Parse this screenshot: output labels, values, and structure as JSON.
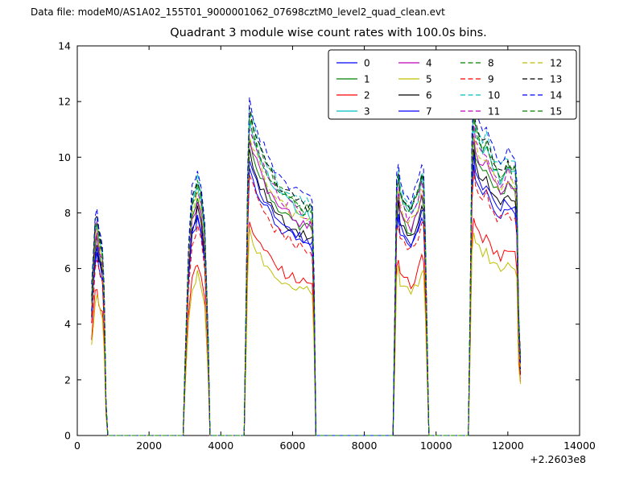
{
  "header": {
    "datafile": "Data file: modeM0/AS1A02_155T01_9000001062_07698cztM0_level2_quad_clean.evt"
  },
  "chart_data": {
    "type": "line",
    "title": "Quadrant 3 module wise count rates with 100.0s bins.",
    "xlabel": "",
    "ylabel": "",
    "xlim": [
      0,
      14000
    ],
    "ylim": [
      0,
      14
    ],
    "x_offset_label": "+2.2603e8",
    "xticks": [
      0,
      2000,
      4000,
      6000,
      8000,
      10000,
      12000,
      14000
    ],
    "yticks": [
      0,
      2,
      4,
      6,
      8,
      10,
      12,
      14
    ],
    "grid": false,
    "legend_position": "upper center-right, 4 columns",
    "series_rule": "y values of each series = scale * base_envelope at each x",
    "x": [
      400,
      450,
      500,
      550,
      600,
      650,
      700,
      750,
      800,
      850,
      2900,
      2950,
      3000,
      3100,
      3200,
      3300,
      3350,
      3450,
      3550,
      3650,
      3700,
      4600,
      4650,
      4700,
      4750,
      4800,
      4900,
      5000,
      5100,
      5200,
      5300,
      5400,
      5500,
      5600,
      5700,
      5800,
      5900,
      6000,
      6100,
      6200,
      6300,
      6400,
      6500,
      6550,
      6600,
      6650,
      8750,
      8800,
      8850,
      8900,
      8950,
      9000,
      9100,
      9200,
      9300,
      9400,
      9500,
      9600,
      9650,
      9700,
      9750,
      9800,
      10850,
      10900,
      10950,
      11000,
      11050,
      11100,
      11200,
      11300,
      11400,
      11500,
      11600,
      11700,
      11800,
      11900,
      12000,
      12100,
      12200,
      12250,
      12300,
      12350
    ],
    "base_envelope": [
      5.3,
      6.6,
      7.9,
      8.2,
      7.6,
      7.2,
      6.9,
      5.2,
      1.2,
      0,
      0,
      0,
      2.5,
      6.8,
      8.9,
      9.3,
      9.6,
      9.1,
      7.8,
      3.5,
      0,
      0,
      0,
      4.5,
      9.5,
      12.1,
      11.5,
      11.1,
      10.7,
      10.4,
      10.1,
      9.9,
      9.6,
      9.4,
      9.2,
      9.1,
      9.0,
      8.9,
      8.8,
      8.7,
      8.6,
      8.6,
      8.5,
      8.4,
      5.5,
      0,
      0,
      0,
      4.5,
      9.4,
      9.9,
      9.2,
      8.8,
      8.6,
      8.5,
      8.8,
      9.2,
      9.9,
      9.6,
      7.5,
      3.5,
      0,
      0,
      0,
      5.0,
      10.8,
      12.1,
      11.6,
      11.2,
      10.9,
      11.1,
      10.6,
      10.3,
      10.1,
      9.9,
      10.1,
      10.3,
      10.1,
      10.1,
      9.2,
      4.5,
      2.8
    ],
    "series": [
      {
        "name": "0",
        "color": "#0000ff",
        "dashed": false,
        "scale": 0.8
      },
      {
        "name": "1",
        "color": "#008000",
        "dashed": false,
        "scale": 0.87
      },
      {
        "name": "2",
        "color": "#ff0000",
        "dashed": false,
        "scale": 0.64
      },
      {
        "name": "3",
        "color": "#00bfbf",
        "dashed": false,
        "scale": 0.93
      },
      {
        "name": "4",
        "color": "#bf00bf",
        "dashed": false,
        "scale": 0.88
      },
      {
        "name": "5",
        "color": "#bfbf00",
        "dashed": false,
        "scale": 0.6
      },
      {
        "name": "6",
        "color": "#000000",
        "dashed": false,
        "scale": 0.84
      },
      {
        "name": "7",
        "color": "#0000ff",
        "dashed": false,
        "scale": 0.82
      },
      {
        "name": "8",
        "color": "#008000",
        "dashed": true,
        "scale": 0.95
      },
      {
        "name": "9",
        "color": "#ff0000",
        "dashed": true,
        "scale": 0.78
      },
      {
        "name": "10",
        "color": "#00bfbf",
        "dashed": true,
        "scale": 0.97
      },
      {
        "name": "11",
        "color": "#bf00bf",
        "dashed": true,
        "scale": 0.92
      },
      {
        "name": "12",
        "color": "#bfbf00",
        "dashed": true,
        "scale": 0.9
      },
      {
        "name": "13",
        "color": "#000000",
        "dashed": true,
        "scale": 0.96
      },
      {
        "name": "14",
        "color": "#0000ff",
        "dashed": true,
        "scale": 1.0
      },
      {
        "name": "15",
        "color": "#008000",
        "dashed": true,
        "scale": 0.94
      }
    ]
  }
}
